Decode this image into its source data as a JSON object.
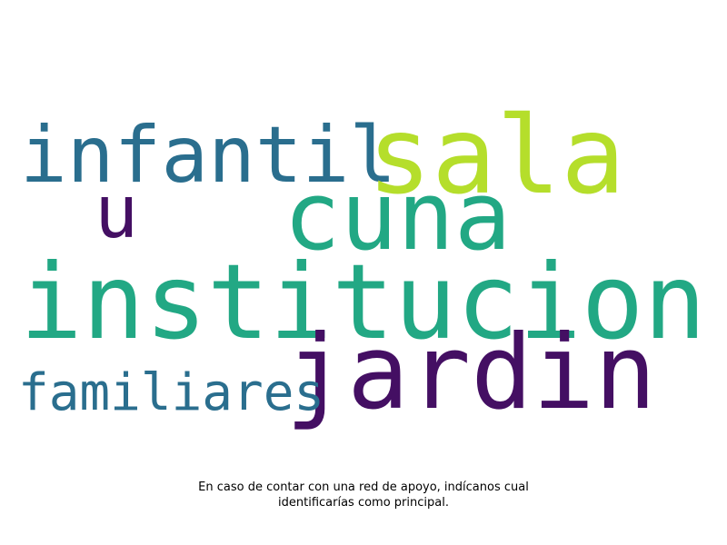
{
  "word_cloud": {
    "words": [
      {
        "text": "institucion",
        "color": "#22a884"
      },
      {
        "text": "jardin",
        "color": "#440f63"
      },
      {
        "text": "cuna",
        "color": "#22a884"
      },
      {
        "text": "sala",
        "color": "#b5de2b"
      },
      {
        "text": "infantil",
        "color": "#2a6e8e"
      },
      {
        "text": "familiares",
        "color": "#2a6e8e"
      },
      {
        "text": "u",
        "color": "#440f63"
      }
    ]
  },
  "caption": {
    "line1": "En caso de contar con una red de apoyo, indícanos cual",
    "line2": "identificarías como principal."
  }
}
